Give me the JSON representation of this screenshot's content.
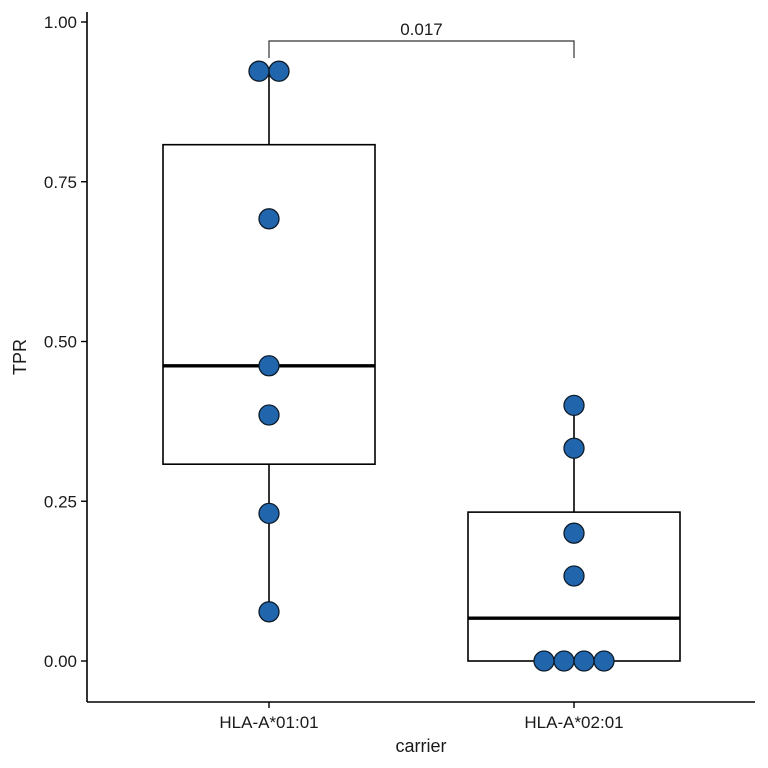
{
  "chart_data": {
    "type": "box",
    "xlabel": "carrier",
    "ylabel": "TPR",
    "ylim": [
      -0.065,
      1.015
    ],
    "yticks": [
      0.0,
      0.25,
      0.5,
      0.75,
      1.0
    ],
    "ytick_labels": [
      "0.00",
      "0.25",
      "0.50",
      "0.75",
      "1.00"
    ],
    "categories": [
      "HLA-A*01:01",
      "HLA-A*02:01"
    ],
    "grid": false,
    "legend": "none",
    "point_color": "#2166ac",
    "boxes": [
      {
        "category": "HLA-A*01:01",
        "min": 0.077,
        "q1": 0.308,
        "median": 0.462,
        "q3": 0.808,
        "max": 0.923,
        "points": [
          0.923,
          0.923,
          0.692,
          0.462,
          0.385,
          0.231,
          0.077
        ]
      },
      {
        "category": "HLA-A*02:01",
        "min": 0.0,
        "q1": 0.0,
        "median": 0.067,
        "q3": 0.233,
        "max": 0.4,
        "points": [
          0.4,
          0.333,
          0.2,
          0.133,
          0.0,
          0.0,
          0.0,
          0.0
        ]
      }
    ],
    "annotations": [
      {
        "type": "significance-bracket",
        "from": "HLA-A*01:01",
        "to": "HLA-A*02:01",
        "label": "0.017"
      }
    ]
  }
}
